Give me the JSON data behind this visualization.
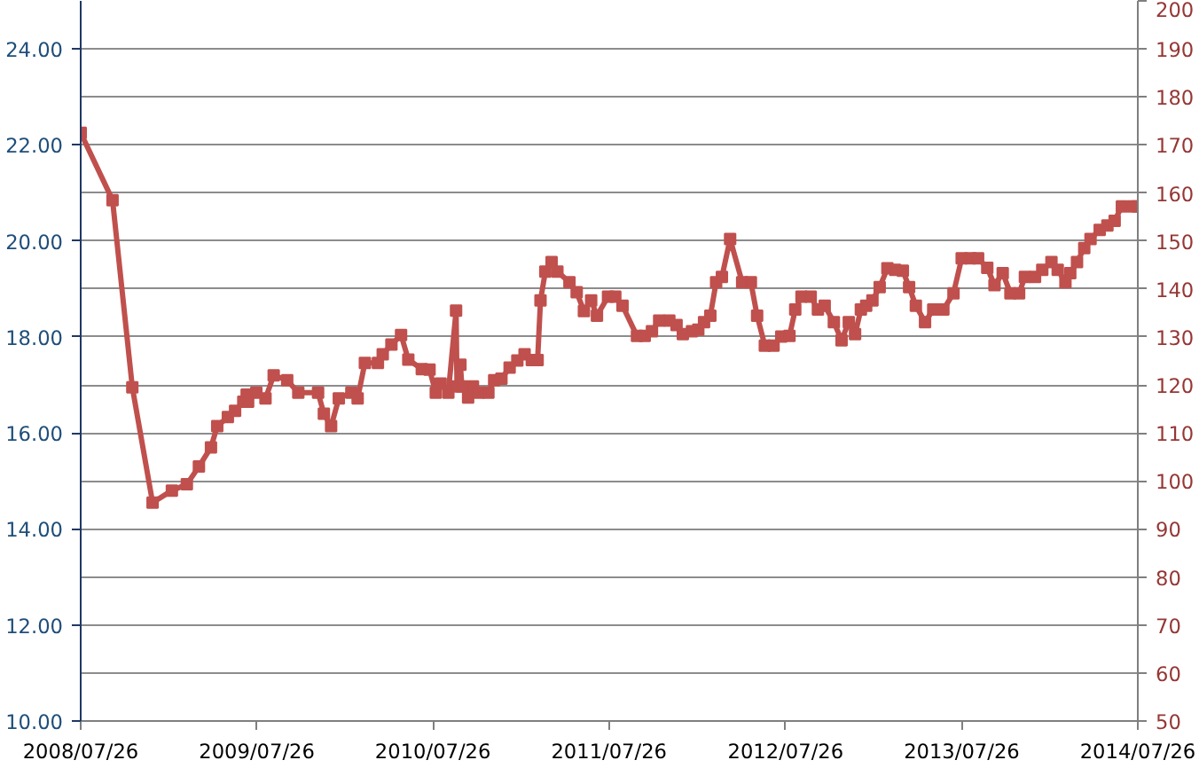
{
  "chart_data": {
    "type": "line",
    "marker": "square",
    "line_style": "solid",
    "grid": "y",
    "xlim": [
      "2008-07-26",
      "2014-07-26"
    ],
    "xticks": [
      {
        "value": "2008-07-26",
        "label": "2008/07/26"
      },
      {
        "value": "2009-07-26",
        "label": "2009/07/26"
      },
      {
        "value": "2010-07-26",
        "label": "2010/07/26"
      },
      {
        "value": "2011-07-26",
        "label": "2011/07/26"
      },
      {
        "value": "2012-07-26",
        "label": "2012/07/26"
      },
      {
        "value": "2013-07-26",
        "label": "2013/07/26"
      },
      {
        "value": "2014-07-26",
        "label": "2014/07/26"
      }
    ],
    "ylim": [
      10,
      25
    ],
    "yticks": [
      {
        "value": 10,
        "label": "10.00"
      },
      {
        "value": 12,
        "label": "12.00"
      },
      {
        "value": 14,
        "label": "14.00"
      },
      {
        "value": 16,
        "label": "16.00"
      },
      {
        "value": 18,
        "label": "18.00"
      },
      {
        "value": 20,
        "label": "20.00"
      },
      {
        "value": 22,
        "label": "22.00"
      },
      {
        "value": 24,
        "label": "24.00"
      }
    ],
    "y2lim": [
      50,
      200
    ],
    "y2ticks": [
      50,
      60,
      70,
      80,
      90,
      100,
      110,
      120,
      130,
      140,
      150,
      160,
      170,
      180,
      190,
      200
    ],
    "x": [
      "2008-07-26",
      "2008-09-30",
      "2008-11-10",
      "2008-12-22",
      "2009-01-31",
      "2009-03-03",
      "2009-03-28",
      "2009-04-22",
      "2009-05-05",
      "2009-05-27",
      "2009-06-11",
      "2009-06-28",
      "2009-07-05",
      "2009-07-08",
      "2009-07-25",
      "2009-08-13",
      "2009-08-30",
      "2009-09-27",
      "2009-10-20",
      "2009-11-30",
      "2009-12-12",
      "2009-12-27",
      "2010-01-12",
      "2010-02-07",
      "2010-02-20",
      "2010-03-07",
      "2010-04-03",
      "2010-04-13",
      "2010-05-01",
      "2010-05-21",
      "2010-06-05",
      "2010-07-03",
      "2010-07-19",
      "2010-08-01",
      "2010-08-11",
      "2010-08-27",
      "2010-09-12",
      "2010-09-14",
      "2010-09-21",
      "2010-09-24",
      "2010-10-07",
      "2010-10-17",
      "2010-10-29",
      "2010-11-18",
      "2010-11-30",
      "2010-12-15",
      "2011-01-01",
      "2011-01-17",
      "2011-02-01",
      "2011-02-16",
      "2011-02-28",
      "2011-03-06",
      "2011-03-16",
      "2011-03-29",
      "2011-04-10",
      "2011-05-05",
      "2011-05-20",
      "2011-06-04",
      "2011-06-19",
      "2011-07-01",
      "2011-07-24",
      "2011-08-08",
      "2011-08-23",
      "2011-09-22",
      "2011-10-08",
      "2011-10-23",
      "2011-11-07",
      "2011-11-28",
      "2011-12-13",
      "2011-12-26",
      "2012-01-14",
      "2012-01-27",
      "2012-02-08",
      "2012-02-21",
      "2012-03-04",
      "2012-03-16",
      "2012-04-02",
      "2012-04-27",
      "2012-05-15",
      "2012-05-28",
      "2012-06-13",
      "2012-07-01",
      "2012-07-17",
      "2012-08-03",
      "2012-08-15",
      "2012-08-28",
      "2012-09-16",
      "2012-10-01",
      "2012-10-15",
      "2012-11-03",
      "2012-11-19",
      "2012-12-04",
      "2012-12-17",
      "2012-12-29",
      "2013-01-09",
      "2013-01-22",
      "2013-02-06",
      "2013-02-22",
      "2013-03-10",
      "2013-03-26",
      "2013-04-08",
      "2013-04-22",
      "2013-05-11",
      "2013-05-28",
      "2013-06-18",
      "2013-07-09",
      "2013-07-26",
      "2013-08-13",
      "2013-08-29",
      "2013-09-17",
      "2013-10-02",
      "2013-10-19",
      "2013-11-04",
      "2013-11-22",
      "2013-12-04",
      "2013-12-25",
      "2014-01-09",
      "2014-01-28",
      "2014-02-10",
      "2014-02-26",
      "2014-03-08",
      "2014-03-22",
      "2014-04-06",
      "2014-04-19",
      "2014-05-08",
      "2014-05-24",
      "2014-06-08",
      "2014-06-23",
      "2014-07-16",
      "2014-07-26"
    ],
    "series": [
      {
        "color": "#c0504d",
        "axis": "y2",
        "values": [
          172.5,
          158.5,
          119.5,
          95.5,
          98,
          99.3,
          103,
          107,
          111.4,
          113.3,
          114.6,
          116.5,
          118,
          116.5,
          118.4,
          117.2,
          122,
          121,
          118.4,
          118.4,
          114,
          111.4,
          117.2,
          118.4,
          117.2,
          124.6,
          124.6,
          126.4,
          128.4,
          130.4,
          125.3,
          123.3,
          123.2,
          118.4,
          120.3,
          118.4,
          135.5,
          119.7,
          124.2,
          119.7,
          117.4,
          119.7,
          118.4,
          118.4,
          121,
          121.3,
          123.6,
          125.1,
          126.4,
          125.2,
          125.2,
          137.6,
          143.6,
          145.6,
          143.6,
          141.4,
          139.3,
          135.4,
          137.6,
          134.4,
          138.4,
          138.4,
          136.5,
          130.2,
          130.2,
          131.2,
          133.4,
          133.4,
          132.5,
          130.6,
          131.2,
          131.5,
          133.1,
          134.4,
          141.4,
          142.5,
          150.4,
          141.4,
          141.4,
          134.4,
          128.2,
          128.2,
          130.1,
          130.2,
          135.7,
          138.4,
          138.4,
          135.7,
          136.5,
          133.1,
          129.3,
          133.1,
          130.6,
          135.7,
          136.5,
          137.6,
          140.4,
          144.3,
          144,
          143.8,
          140.4,
          136.5,
          133.1,
          135.7,
          135.7,
          139.1,
          146.4,
          146.4,
          146.4,
          144.4,
          140.8,
          143.3,
          139.1,
          139.1,
          142.5,
          142.5,
          144,
          145.6,
          144,
          141.4,
          143.3,
          145.6,
          148.5,
          150.4,
          152.3,
          153.2,
          154.2,
          157.2,
          157.2,
          157.2
        ]
      }
    ]
  }
}
